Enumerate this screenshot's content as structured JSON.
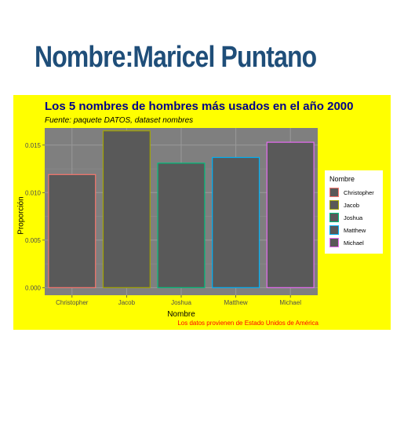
{
  "page": {
    "title": "Nombre:Maricel Puntano"
  },
  "chart_data": {
    "type": "bar",
    "title": "Los 5 nombres de hombres más usados en el año 2000",
    "subtitle": "Fuente: paquete DATOS, dataset nombres",
    "caption": "Los datos provienen de Estado Unidos de América",
    "xlabel": "Nombre",
    "ylabel": "Proporción",
    "categories": [
      "Christopher",
      "Jacob",
      "Joshua",
      "Matthew",
      "Michael"
    ],
    "values": [
      0.0119,
      0.0165,
      0.0131,
      0.0137,
      0.0153
    ],
    "ylim": [
      -0.0008,
      0.0168
    ],
    "yticks": [
      0.0,
      0.005,
      0.01,
      0.015
    ],
    "ytick_labels": [
      "0.000",
      "0.005",
      "0.010",
      "0.015"
    ],
    "bar_fill": "#595959",
    "outline_colors": [
      "#f8766d",
      "#a3a500",
      "#00bf7d",
      "#00b0f6",
      "#e76bf3"
    ],
    "plot_background": "#7f7f7f",
    "panel_background": "#ffff00",
    "grid": true,
    "legend": {
      "title": "Nombre",
      "position": "right",
      "entries": [
        "Christopher",
        "Jacob",
        "Joshua",
        "Matthew",
        "Michael"
      ]
    }
  }
}
